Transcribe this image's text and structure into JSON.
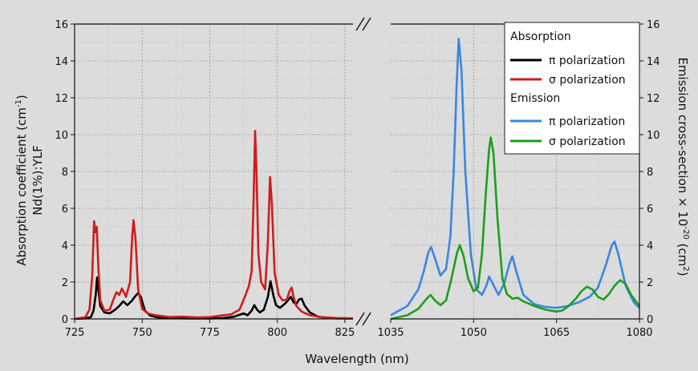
{
  "chart_data": {
    "type": "line",
    "xlabel": "Wavelength (nm)",
    "ylabel_left_line1": "Absorption coefficient (cm",
    "ylabel_left_sup": "-1",
    "ylabel_left_close": ")",
    "ylabel_left_line2": "Nd(1%):YLF",
    "ylabel_right_main": "Emission cross-section × 10",
    "ylabel_right_sup1": "-20",
    "ylabel_right_mid": " (cm",
    "ylabel_right_sup2": "2",
    "ylabel_right_close": ")",
    "left_panel": {
      "xlim": [
        725,
        828
      ],
      "ylim": [
        0,
        16
      ],
      "xticks": [
        725,
        750,
        775,
        800,
        825
      ]
    },
    "right_panel": {
      "xlim": [
        1035,
        1080
      ],
      "ylim": [
        0,
        16
      ],
      "xticks": [
        1035,
        1050,
        1065,
        1080
      ]
    },
    "yticks": [
      0,
      2,
      4,
      6,
      8,
      10,
      12,
      14,
      16
    ],
    "grid": true,
    "legend": {
      "position": "top-right",
      "group1": "Absorption",
      "group2": "Emission",
      "items": [
        {
          "label": "π polarization",
          "color": "#000000"
        },
        {
          "label": "σ polarization",
          "color": "#d01c1c"
        },
        {
          "label": "π polarization",
          "color": "#3a86e0"
        },
        {
          "label": "σ polarization",
          "color": "#1aa01a"
        }
      ]
    },
    "series": [
      {
        "color": "#000000",
        "panel": "left",
        "points": [
          [
            725,
            0.0
          ],
          [
            729,
            0.03
          ],
          [
            731,
            0.1
          ],
          [
            732,
            0.45
          ],
          [
            732.8,
            1.3
          ],
          [
            733.3,
            2.25
          ],
          [
            733.8,
            1.6
          ],
          [
            734.5,
            0.7
          ],
          [
            736,
            0.35
          ],
          [
            738,
            0.3
          ],
          [
            740,
            0.5
          ],
          [
            741.5,
            0.7
          ],
          [
            743,
            0.95
          ],
          [
            744.5,
            0.75
          ],
          [
            746,
            0.95
          ],
          [
            747.5,
            1.25
          ],
          [
            748.5,
            1.4
          ],
          [
            749.5,
            1.2
          ],
          [
            751,
            0.45
          ],
          [
            753,
            0.18
          ],
          [
            756,
            0.08
          ],
          [
            760,
            0.05
          ],
          [
            765,
            0.03
          ],
          [
            770,
            0.02
          ],
          [
            775,
            0.02
          ],
          [
            780,
            0.05
          ],
          [
            784,
            0.12
          ],
          [
            786,
            0.22
          ],
          [
            787.5,
            0.3
          ],
          [
            789,
            0.2
          ],
          [
            790.5,
            0.45
          ],
          [
            791.5,
            0.75
          ],
          [
            792.5,
            0.5
          ],
          [
            793.5,
            0.35
          ],
          [
            795,
            0.5
          ],
          [
            796.5,
            1.2
          ],
          [
            797.5,
            2.05
          ],
          [
            798.5,
            1.3
          ],
          [
            799.5,
            0.75
          ],
          [
            801,
            0.6
          ],
          [
            803,
            0.85
          ],
          [
            805,
            1.2
          ],
          [
            806,
            0.9
          ],
          [
            807,
            0.8
          ],
          [
            808,
            1.05
          ],
          [
            809,
            1.1
          ],
          [
            810,
            0.75
          ],
          [
            812,
            0.35
          ],
          [
            815,
            0.12
          ],
          [
            818,
            0.06
          ],
          [
            822,
            0.03
          ],
          [
            828,
            0.02
          ]
        ]
      },
      {
        "color": "#d01c1c",
        "panel": "left",
        "points": [
          [
            725,
            0.0
          ],
          [
            729,
            0.1
          ],
          [
            730.5,
            0.5
          ],
          [
            731.5,
            2.3
          ],
          [
            732.2,
            5.3
          ],
          [
            732.7,
            4.7
          ],
          [
            733.2,
            5.0
          ],
          [
            733.8,
            2.8
          ],
          [
            734.5,
            1.0
          ],
          [
            736,
            0.45
          ],
          [
            738,
            0.5
          ],
          [
            739.5,
            1.1
          ],
          [
            740.5,
            1.45
          ],
          [
            741.5,
            1.3
          ],
          [
            742.5,
            1.65
          ],
          [
            744,
            1.2
          ],
          [
            745.5,
            2.0
          ],
          [
            746.3,
            4.5
          ],
          [
            746.8,
            5.35
          ],
          [
            747.5,
            4.4
          ],
          [
            748.5,
            1.6
          ],
          [
            750,
            0.55
          ],
          [
            752,
            0.3
          ],
          [
            755,
            0.2
          ],
          [
            760,
            0.1
          ],
          [
            765,
            0.12
          ],
          [
            770,
            0.08
          ],
          [
            775,
            0.1
          ],
          [
            780,
            0.2
          ],
          [
            783,
            0.25
          ],
          [
            786,
            0.5
          ],
          [
            788,
            1.2
          ],
          [
            789.5,
            1.8
          ],
          [
            790.5,
            2.6
          ],
          [
            791.3,
            7.0
          ],
          [
            791.8,
            10.2
          ],
          [
            792.3,
            8.0
          ],
          [
            793,
            3.5
          ],
          [
            794,
            2.0
          ],
          [
            795.5,
            1.6
          ],
          [
            796.5,
            4.2
          ],
          [
            797.3,
            7.7
          ],
          [
            798,
            6.2
          ],
          [
            799,
            2.5
          ],
          [
            800.5,
            1.3
          ],
          [
            802,
            1.0
          ],
          [
            803.5,
            1.05
          ],
          [
            804.5,
            1.5
          ],
          [
            805.3,
            1.7
          ],
          [
            806,
            1.2
          ],
          [
            807,
            0.7
          ],
          [
            809,
            0.4
          ],
          [
            812,
            0.2
          ],
          [
            816,
            0.1
          ],
          [
            822,
            0.05
          ],
          [
            828,
            0.03
          ]
        ]
      },
      {
        "color": "#3a86e0",
        "panel": "right",
        "points": [
          [
            1035,
            0.2
          ],
          [
            1038,
            0.7
          ],
          [
            1040,
            1.6
          ],
          [
            1041,
            2.6
          ],
          [
            1041.8,
            3.6
          ],
          [
            1042.3,
            3.9
          ],
          [
            1043,
            3.3
          ],
          [
            1044,
            2.35
          ],
          [
            1045,
            2.7
          ],
          [
            1045.8,
            4.5
          ],
          [
            1046.4,
            8.0
          ],
          [
            1046.9,
            12.5
          ],
          [
            1047.3,
            15.2
          ],
          [
            1047.8,
            13.5
          ],
          [
            1048.5,
            8.0
          ],
          [
            1049.5,
            3.5
          ],
          [
            1050.5,
            1.6
          ],
          [
            1051.5,
            1.3
          ],
          [
            1052.3,
            1.8
          ],
          [
            1052.8,
            2.3
          ],
          [
            1053.5,
            1.9
          ],
          [
            1054.5,
            1.3
          ],
          [
            1055.5,
            1.9
          ],
          [
            1056.5,
            3.0
          ],
          [
            1057,
            3.4
          ],
          [
            1057.7,
            2.6
          ],
          [
            1059,
            1.3
          ],
          [
            1061,
            0.8
          ],
          [
            1063,
            0.65
          ],
          [
            1065,
            0.6
          ],
          [
            1067,
            0.7
          ],
          [
            1069,
            0.9
          ],
          [
            1071,
            1.2
          ],
          [
            1072.5,
            1.7
          ],
          [
            1074,
            3.0
          ],
          [
            1075,
            4.0
          ],
          [
            1075.5,
            4.2
          ],
          [
            1076.2,
            3.5
          ],
          [
            1077.5,
            1.8
          ],
          [
            1079,
            0.9
          ],
          [
            1080,
            0.6
          ]
        ]
      },
      {
        "color": "#1aa01a",
        "panel": "right",
        "points": [
          [
            1035,
            0.0
          ],
          [
            1038,
            0.2
          ],
          [
            1040,
            0.55
          ],
          [
            1041.5,
            1.1
          ],
          [
            1042.2,
            1.3
          ],
          [
            1043,
            1.0
          ],
          [
            1044,
            0.75
          ],
          [
            1045,
            1.0
          ],
          [
            1046,
            2.2
          ],
          [
            1047,
            3.6
          ],
          [
            1047.5,
            4.0
          ],
          [
            1048.2,
            3.4
          ],
          [
            1049,
            2.2
          ],
          [
            1050,
            1.5
          ],
          [
            1050.8,
            1.7
          ],
          [
            1051.5,
            3.5
          ],
          [
            1052.2,
            6.8
          ],
          [
            1052.8,
            9.2
          ],
          [
            1053.1,
            9.85
          ],
          [
            1053.6,
            9.0
          ],
          [
            1054.3,
            5.5
          ],
          [
            1055.2,
            2.2
          ],
          [
            1056,
            1.35
          ],
          [
            1057,
            1.1
          ],
          [
            1058,
            1.15
          ],
          [
            1059,
            0.95
          ],
          [
            1061,
            0.7
          ],
          [
            1063,
            0.5
          ],
          [
            1065,
            0.4
          ],
          [
            1066,
            0.45
          ],
          [
            1067,
            0.65
          ],
          [
            1068.5,
            1.1
          ],
          [
            1069.5,
            1.5
          ],
          [
            1070.5,
            1.75
          ],
          [
            1071.5,
            1.6
          ],
          [
            1072.5,
            1.2
          ],
          [
            1073.5,
            1.05
          ],
          [
            1074.5,
            1.35
          ],
          [
            1075.5,
            1.8
          ],
          [
            1076.5,
            2.1
          ],
          [
            1077.5,
            1.9
          ],
          [
            1078.5,
            1.3
          ],
          [
            1080,
            0.7
          ]
        ]
      }
    ]
  }
}
